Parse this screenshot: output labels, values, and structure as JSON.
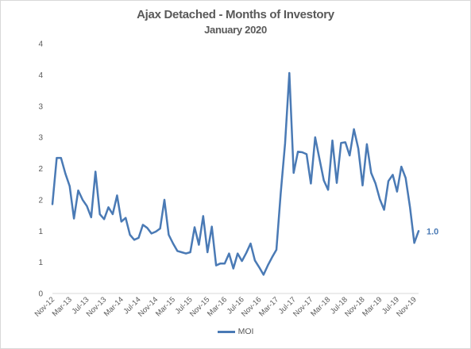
{
  "chart_data": {
    "type": "line",
    "title": "Ajax Detached - Months of Investory",
    "subtitle": "January 2020",
    "xlabel": "",
    "ylabel": "",
    "y_tick_labels": [
      "0",
      "1",
      "1",
      "2",
      "2",
      "3",
      "3",
      "4",
      "4"
    ],
    "ylim": [
      0,
      4
    ],
    "grid": false,
    "legend_position": "bottom",
    "x_tick_labels": [
      "Nov-12",
      "Mar-13",
      "Jul-13",
      "Nov-13",
      "Mar-14",
      "Jul-14",
      "Nov-14",
      "Mar-15",
      "Jul-15",
      "Nov-15",
      "Mar-16",
      "Jul-16",
      "Nov-16",
      "Mar-17",
      "Jul-17",
      "Nov-17",
      "Mar-18",
      "Jul-18",
      "Nov-18",
      "Mar-19",
      "Jul-19",
      "Nov-19"
    ],
    "end_label": "1.0",
    "series": [
      {
        "name": "MOI",
        "color": "#4a7ab5",
        "values": [
          1.43,
          2.17,
          2.17,
          1.92,
          1.72,
          1.2,
          1.65,
          1.5,
          1.4,
          1.22,
          1.95,
          1.27,
          1.19,
          1.38,
          1.27,
          1.57,
          1.15,
          1.21,
          0.94,
          0.86,
          0.89,
          1.1,
          1.05,
          0.96,
          0.99,
          1.04,
          1.5,
          0.94,
          0.8,
          0.68,
          0.66,
          0.64,
          0.66,
          1.06,
          0.78,
          1.24,
          0.66,
          1.07,
          0.45,
          0.48,
          0.48,
          0.64,
          0.4,
          0.64,
          0.52,
          0.65,
          0.8,
          0.53,
          0.42,
          0.3,
          0.45,
          0.58,
          0.7,
          1.6,
          2.4,
          3.53,
          1.93,
          2.27,
          2.26,
          2.23,
          1.76,
          2.5,
          2.15,
          1.81,
          1.66,
          2.45,
          1.77,
          2.41,
          2.42,
          2.21,
          2.63,
          2.32,
          1.73,
          2.39,
          1.93,
          1.76,
          1.51,
          1.34,
          1.8,
          1.9,
          1.63,
          2.03,
          1.85,
          1.38,
          0.81,
          1.0
        ]
      }
    ]
  }
}
